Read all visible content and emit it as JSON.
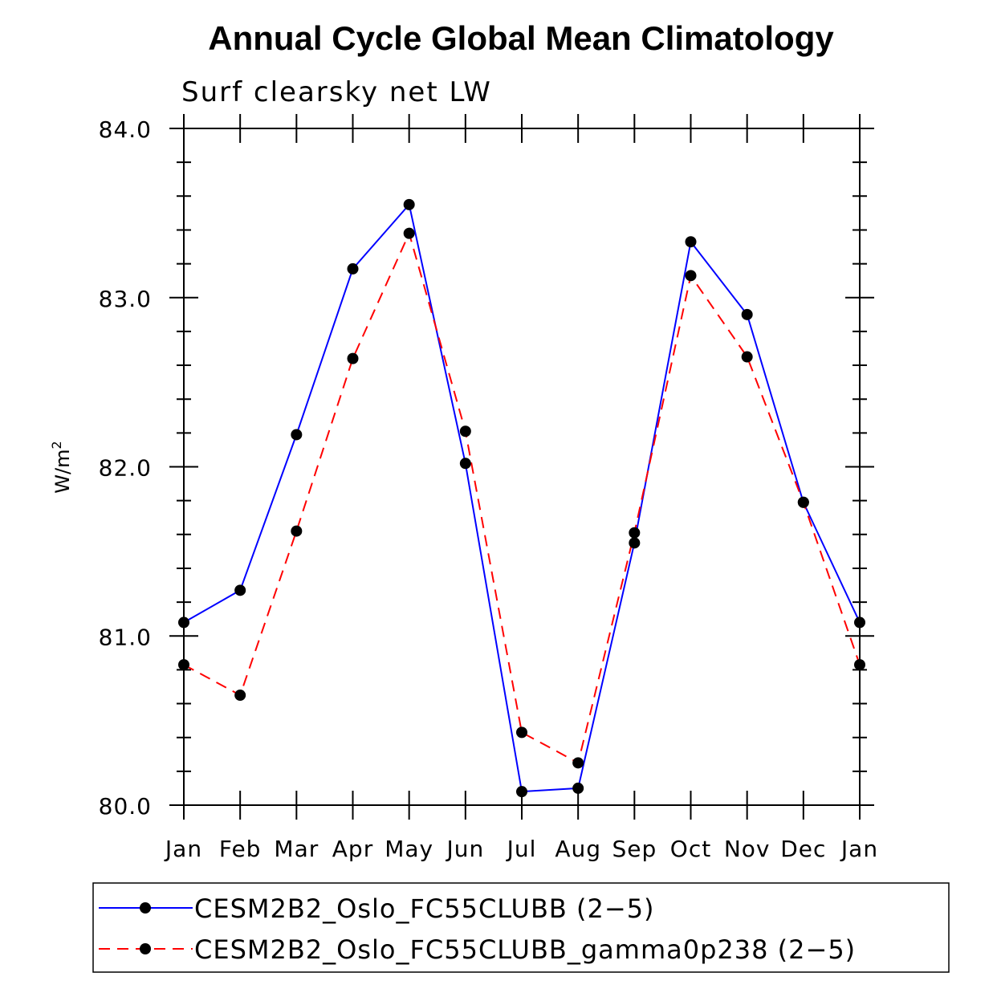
{
  "chart_data": {
    "type": "line",
    "title": "Annual Cycle Global Mean Climatology",
    "subtitle": "Surf clearsky net LW",
    "ylabel": "W/m",
    "ylabel_superscript": "2",
    "xlabel": "",
    "categories": [
      "Jan",
      "Feb",
      "Mar",
      "Apr",
      "May",
      "Jun",
      "Jul",
      "Aug",
      "Sep",
      "Oct",
      "Nov",
      "Dec",
      "Jan"
    ],
    "ylim": [
      80.0,
      84.0
    ],
    "yticks": [
      "80.0",
      "81.0",
      "82.0",
      "83.0",
      "84.0"
    ],
    "grid": false,
    "legend_position": "bottom",
    "series": [
      {
        "name": "CESM2B2_Oslo_FC55CLUBB (2−5)",
        "color": "#0000ff",
        "dash": "solid",
        "values": [
          81.08,
          81.27,
          82.19,
          83.17,
          83.55,
          82.02,
          80.08,
          80.1,
          81.55,
          83.33,
          82.9,
          81.79,
          81.08
        ]
      },
      {
        "name": "CESM2B2_Oslo_FC55CLUBB_gamma0p238 (2−5)",
        "color": "#ff0000",
        "dash": "dashed",
        "values": [
          80.83,
          80.65,
          81.62,
          82.64,
          83.38,
          82.21,
          80.43,
          80.25,
          81.61,
          83.13,
          82.65,
          81.79,
          80.83
        ]
      }
    ]
  }
}
